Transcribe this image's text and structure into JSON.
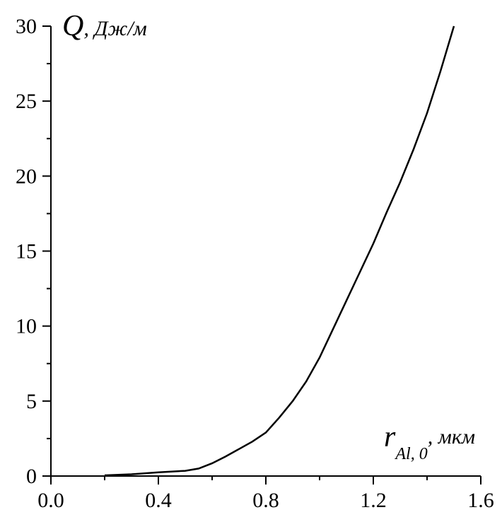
{
  "chart_data": {
    "type": "line",
    "y_label": {
      "symbol": "Q",
      "unit": ", Дж/м"
    },
    "x_label": {
      "symbol": "r",
      "subscript": "Al, 0",
      "unit": ", мкм"
    },
    "xlim": [
      0,
      1.6
    ],
    "ylim": [
      0,
      30
    ],
    "xticks": [
      {
        "value": 0,
        "label": "0.0"
      },
      0.4,
      0.8,
      1.2,
      1.6
    ],
    "yticks": [
      0,
      5,
      10,
      15,
      20,
      25,
      30
    ],
    "xminorticks": [
      0.2,
      0.6,
      1.0,
      1.4
    ],
    "yminorticks": [
      2.5,
      7.5,
      12.5,
      17.5,
      22.5,
      27.5
    ],
    "color": "#000000",
    "x": [
      0.2,
      0.3,
      0.4,
      0.5,
      0.55,
      0.6,
      0.65,
      0.7,
      0.75,
      0.8,
      0.85,
      0.9,
      0.95,
      1.0,
      1.05,
      1.1,
      1.15,
      1.2,
      1.25,
      1.3,
      1.35,
      1.4,
      1.45,
      1.5
    ],
    "values": [
      0.05,
      0.12,
      0.25,
      0.35,
      0.5,
      0.85,
      1.3,
      1.8,
      2.3,
      2.9,
      3.9,
      5.0,
      6.3,
      7.9,
      9.8,
      11.7,
      13.6,
      15.5,
      17.6,
      19.6,
      21.8,
      24.2,
      27.0,
      30
    ]
  }
}
